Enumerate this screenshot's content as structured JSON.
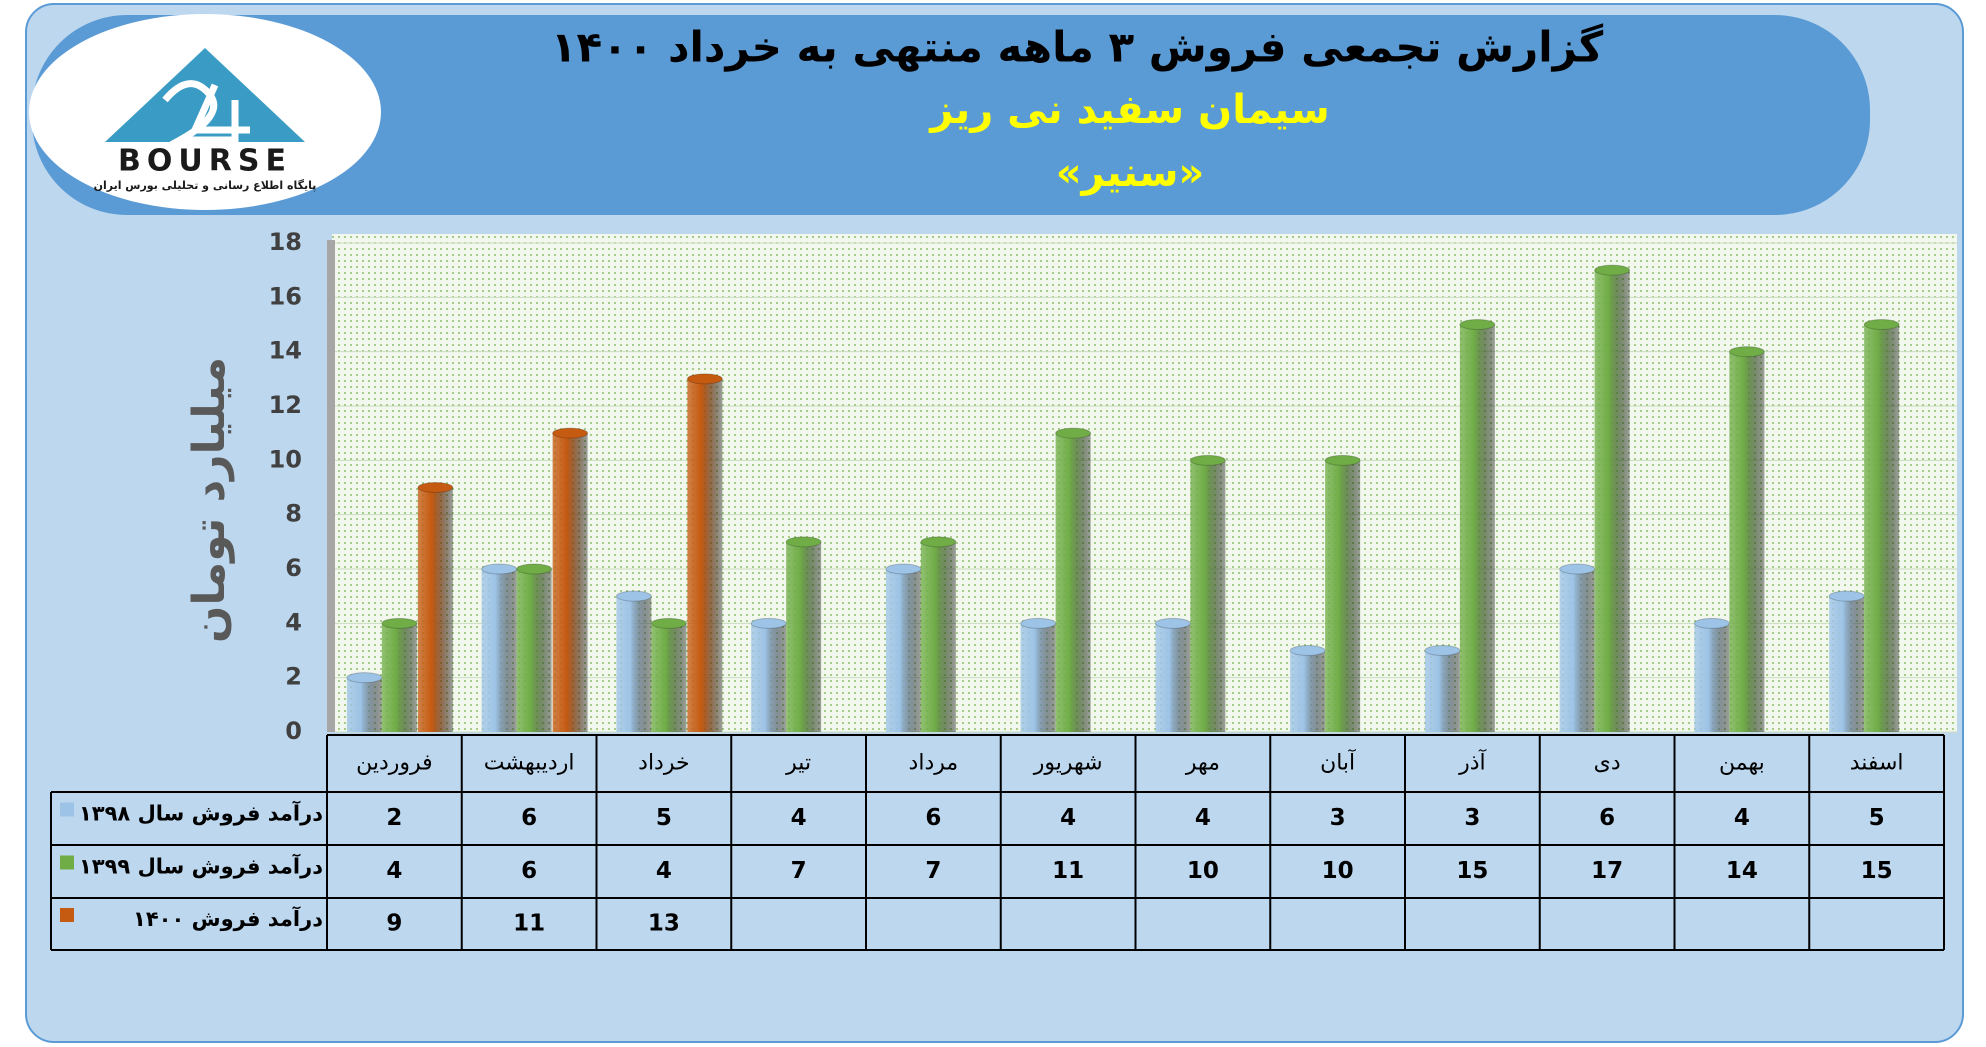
{
  "logo": {
    "name": "BOURSE",
    "tagline": "پایگاه اطلاع رسانی و تحلیلی بورس ایران"
  },
  "chart_data": {
    "type": "bar",
    "title": "گزارش تجمعی فروش ۳ ماهه منتهی به خرداد ۱۴۰۰",
    "subtitle": "سیمان سفید نی ریز",
    "symbol": "«سنیر»",
    "y_label": "میلیارد تومان",
    "categories": [
      "فروردین",
      "اردیبهشت",
      "خرداد",
      "تیر",
      "مرداد",
      "شهریور",
      "مهر",
      "آبان",
      "آذر",
      "دی",
      "بهمن",
      "اسفند"
    ],
    "series": [
      {
        "name": "درآمد فروش سال ۱۳۹۸",
        "color": "#9dc3e6",
        "values": [
          2,
          6,
          5,
          4,
          6,
          4,
          4,
          3,
          3,
          6,
          4,
          5
        ]
      },
      {
        "name": "درآمد فروش سال ۱۳۹۹",
        "color": "#70ad47",
        "values": [
          4,
          6,
          4,
          7,
          7,
          11,
          10,
          10,
          15,
          17,
          14,
          15
        ]
      },
      {
        "name": "درآمد فروش ۱۴۰۰",
        "color": "#c55a11",
        "values": [
          9,
          11,
          13,
          null,
          null,
          null,
          null,
          null,
          null,
          null,
          null,
          null
        ]
      }
    ],
    "ylim": [
      0,
      18
    ],
    "yticks": [
      0,
      2,
      4,
      6,
      8,
      10,
      12,
      14,
      16,
      18
    ],
    "grid": true
  }
}
